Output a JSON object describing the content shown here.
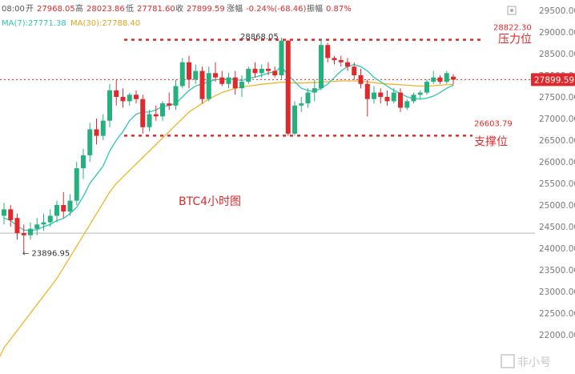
{
  "header": {
    "time": "08:00",
    "open_label": "开",
    "open": "27968.05",
    "high_label": "高",
    "high": "28023.86",
    "low_label": "低",
    "low": "27781.60",
    "close_label": "收",
    "close": "27899.59",
    "change_label": "涨幅",
    "change": "-0.24%(-68.46)",
    "amplitude_label": "振幅",
    "amplitude": "0.87%",
    "ma7_label": "MA(7):27771.38",
    "ma30_label": "MA(30):27788.40"
  },
  "colors": {
    "up": "#25b07e",
    "down": "#e0292c",
    "ma7": "#2ec7b3",
    "ma30": "#f0b429",
    "annotation": "#e0292c",
    "last_price_bg": "#e0292c"
  },
  "chart_data": {
    "type": "candlestick",
    "title": "BTC4小时图",
    "ylim": [
      21750,
      29700
    ],
    "yticks": [
      "29500.00",
      "29000.00",
      "28500.00",
      "28000.00",
      "27500.00",
      "27000.00",
      "26500.00",
      "26000.00",
      "25500.00",
      "25000.00",
      "24500.00",
      "24000.00",
      "23500.00",
      "23000.00",
      "22500.00",
      "22000.00"
    ],
    "candles": [
      {
        "o": 24750,
        "h": 25050,
        "l": 24550,
        "c": 24900
      },
      {
        "o": 24900,
        "h": 25000,
        "l": 24500,
        "c": 24650
      },
      {
        "o": 24700,
        "h": 24800,
        "l": 24200,
        "c": 24350
      },
      {
        "o": 24350,
        "h": 24550,
        "l": 23896.95,
        "c": 24300
      },
      {
        "o": 24300,
        "h": 24600,
        "l": 24200,
        "c": 24450
      },
      {
        "o": 24450,
        "h": 24700,
        "l": 24300,
        "c": 24550
      },
      {
        "o": 24550,
        "h": 24800,
        "l": 24400,
        "c": 24600
      },
      {
        "o": 24600,
        "h": 24900,
        "l": 24500,
        "c": 24750
      },
      {
        "o": 24750,
        "h": 25100,
        "l": 24600,
        "c": 25000
      },
      {
        "o": 25000,
        "h": 25300,
        "l": 24700,
        "c": 24850
      },
      {
        "o": 24850,
        "h": 25250,
        "l": 24750,
        "c": 25100
      },
      {
        "o": 25100,
        "h": 26000,
        "l": 25000,
        "c": 25850
      },
      {
        "o": 25850,
        "h": 26300,
        "l": 25600,
        "c": 26150
      },
      {
        "o": 26150,
        "h": 26900,
        "l": 26000,
        "c": 26750
      },
      {
        "o": 26750,
        "h": 27000,
        "l": 26400,
        "c": 26600
      },
      {
        "o": 26600,
        "h": 27100,
        "l": 26500,
        "c": 26950
      },
      {
        "o": 26950,
        "h": 27800,
        "l": 26800,
        "c": 27650
      },
      {
        "o": 27650,
        "h": 27900,
        "l": 27300,
        "c": 27500
      },
      {
        "o": 27500,
        "h": 27700,
        "l": 27250,
        "c": 27400
      },
      {
        "o": 27400,
        "h": 27600,
        "l": 27300,
        "c": 27550
      },
      {
        "o": 27550,
        "h": 27650,
        "l": 27350,
        "c": 27450
      },
      {
        "o": 27450,
        "h": 27550,
        "l": 26650,
        "c": 26800
      },
      {
        "o": 26800,
        "h": 27200,
        "l": 26700,
        "c": 27100
      },
      {
        "o": 27100,
        "h": 27300,
        "l": 26950,
        "c": 27050
      },
      {
        "o": 27050,
        "h": 27400,
        "l": 26950,
        "c": 27350
      },
      {
        "o": 27350,
        "h": 27600,
        "l": 27200,
        "c": 27300
      },
      {
        "o": 27300,
        "h": 27900,
        "l": 27200,
        "c": 27750
      },
      {
        "o": 27750,
        "h": 28400,
        "l": 27700,
        "c": 28300
      },
      {
        "o": 28300,
        "h": 28450,
        "l": 27700,
        "c": 27900
      },
      {
        "o": 27900,
        "h": 28250,
        "l": 27800,
        "c": 28100
      },
      {
        "o": 28100,
        "h": 28200,
        "l": 27350,
        "c": 27450
      },
      {
        "o": 27450,
        "h": 28200,
        "l": 27400,
        "c": 28050
      },
      {
        "o": 28050,
        "h": 28300,
        "l": 27850,
        "c": 27950
      },
      {
        "o": 27950,
        "h": 28100,
        "l": 27750,
        "c": 27800
      },
      {
        "o": 27800,
        "h": 28050,
        "l": 27700,
        "c": 27950
      },
      {
        "o": 27950,
        "h": 28100,
        "l": 27550,
        "c": 27700
      },
      {
        "o": 27700,
        "h": 28000,
        "l": 27500,
        "c": 27850
      },
      {
        "o": 27850,
        "h": 28200,
        "l": 27800,
        "c": 28150
      },
      {
        "o": 28150,
        "h": 28300,
        "l": 27950,
        "c": 28050
      },
      {
        "o": 28050,
        "h": 28250,
        "l": 27950,
        "c": 28150
      },
      {
        "o": 28150,
        "h": 28300,
        "l": 28000,
        "c": 28100
      },
      {
        "o": 28100,
        "h": 28200,
        "l": 27950,
        "c": 28000
      },
      {
        "o": 28000,
        "h": 28868.05,
        "l": 27900,
        "c": 28800
      },
      {
        "o": 28800,
        "h": 28820,
        "l": 26603.79,
        "c": 26650
      },
      {
        "o": 26650,
        "h": 27400,
        "l": 26603.79,
        "c": 27300
      },
      {
        "o": 27300,
        "h": 27500,
        "l": 27150,
        "c": 27350
      },
      {
        "o": 27350,
        "h": 27700,
        "l": 27250,
        "c": 27600
      },
      {
        "o": 27600,
        "h": 27900,
        "l": 27400,
        "c": 27700
      },
      {
        "o": 27700,
        "h": 28850,
        "l": 27650,
        "c": 28700
      },
      {
        "o": 28700,
        "h": 28750,
        "l": 28300,
        "c": 28400
      },
      {
        "o": 28400,
        "h": 28450,
        "l": 28250,
        "c": 28350
      },
      {
        "o": 28350,
        "h": 28450,
        "l": 28200,
        "c": 28300
      },
      {
        "o": 28300,
        "h": 28400,
        "l": 28100,
        "c": 28200
      },
      {
        "o": 28200,
        "h": 28300,
        "l": 27900,
        "c": 28000
      },
      {
        "o": 28000,
        "h": 28150,
        "l": 27700,
        "c": 27800
      },
      {
        "o": 27800,
        "h": 27900,
        "l": 27050,
        "c": 27450
      },
      {
        "o": 27450,
        "h": 27750,
        "l": 27350,
        "c": 27600
      },
      {
        "o": 27600,
        "h": 27700,
        "l": 27350,
        "c": 27500
      },
      {
        "o": 27500,
        "h": 27650,
        "l": 27300,
        "c": 27400
      },
      {
        "o": 27400,
        "h": 27700,
        "l": 27350,
        "c": 27600
      },
      {
        "o": 27600,
        "h": 27700,
        "l": 27150,
        "c": 27250
      },
      {
        "o": 27250,
        "h": 27450,
        "l": 27200,
        "c": 27400
      },
      {
        "o": 27400,
        "h": 27600,
        "l": 27350,
        "c": 27550
      },
      {
        "o": 27550,
        "h": 27650,
        "l": 27450,
        "c": 27600
      },
      {
        "o": 27600,
        "h": 27900,
        "l": 27550,
        "c": 27850
      },
      {
        "o": 27850,
        "h": 28100,
        "l": 27800,
        "c": 27950
      },
      {
        "o": 27950,
        "h": 28000,
        "l": 27800,
        "c": 27850
      },
      {
        "o": 27850,
        "h": 28100,
        "l": 27800,
        "c": 28050
      },
      {
        "o": 27968.05,
        "h": 28023.86,
        "l": 27781.6,
        "c": 27899.59
      }
    ],
    "ma7": [
      24700,
      24640,
      24520,
      24420,
      24410,
      24430,
      24500,
      24550,
      24640,
      24690,
      24800,
      24950,
      25200,
      25500,
      25700,
      25900,
      26250,
      26500,
      26700,
      26950,
      27100,
      27150,
      27150,
      27200,
      27280,
      27300,
      27350,
      27500,
      27650,
      27750,
      27800,
      27850,
      27900,
      27900,
      27920,
      27900,
      27880,
      27920,
      27960,
      28000,
      28050,
      28080,
      28200,
      28000,
      27850,
      27700,
      27650,
      27620,
      27700,
      27800,
      27950,
      28100,
      28200,
      28250,
      28200,
      28100,
      27950,
      27850,
      27750,
      27650,
      27580,
      27500,
      27460,
      27450,
      27470,
      27520,
      27600,
      27700,
      27771.38
    ],
    "ma30": [
      21700,
      21900,
      22100,
      22300,
      22500,
      22700,
      22900,
      23100,
      23300,
      23550,
      23800,
      24050,
      24300,
      24550,
      24800,
      25050,
      25300,
      25500,
      25650,
      25800,
      25950,
      26100,
      26250,
      26400,
      26550,
      26700,
      26850,
      27000,
      27150,
      27250,
      27350,
      27450,
      27530,
      27600,
      27650,
      27700,
      27730,
      27750,
      27770,
      27790,
      27810,
      27820,
      27840,
      27830,
      27820,
      27820,
      27830,
      27830,
      27840,
      27850,
      27860,
      27870,
      27870,
      27870,
      27860,
      27850,
      27830,
      27810,
      27800,
      27790,
      27780,
      27770,
      27760,
      27750,
      27750,
      27760,
      27770,
      27780,
      27788.4
    ],
    "annotations": {
      "resistance_value": "28822.30",
      "resistance_label": "压力位",
      "support_value": "26603.79",
      "support_label": "支撑位",
      "high_marker": "28868.05",
      "low_marker": "← 23896.95",
      "last_price": "27899.59",
      "gray_line_value": 24350
    }
  },
  "watermark": "非小号"
}
